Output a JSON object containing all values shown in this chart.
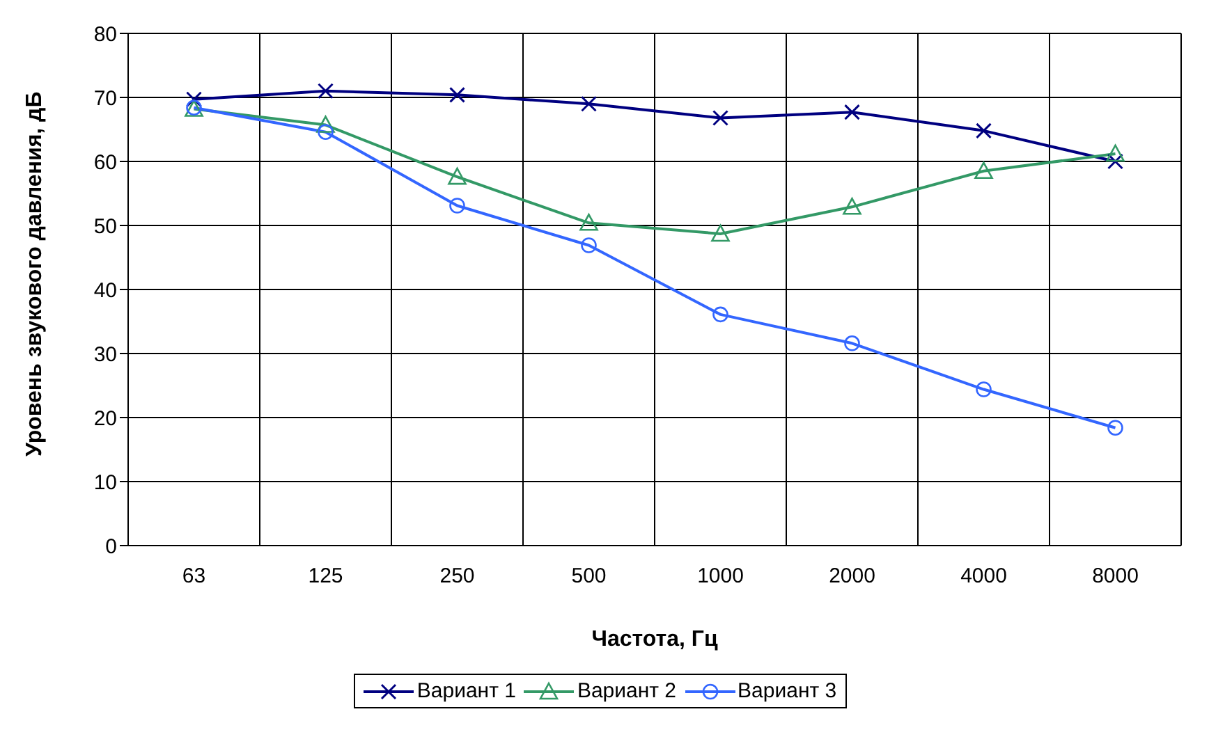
{
  "chart_data": {
    "type": "line",
    "xlabel": "Частота, Гц",
    "ylabel": "Уровень звукового давления, дБ",
    "categories": [
      "63",
      "125",
      "250",
      "500",
      "1000",
      "2000",
      "4000",
      "8000"
    ],
    "series": [
      {
        "name": "Вариант 1",
        "color": "#000080",
        "marker": "cross",
        "values": [
          69.7,
          71,
          70.4,
          69,
          66.8,
          67.7,
          64.8,
          60
        ]
      },
      {
        "name": "Вариант 2",
        "color": "#339966",
        "marker": "triangle",
        "values": [
          68.2,
          65.7,
          57.6,
          50.4,
          48.7,
          52.9,
          58.5,
          61.2
        ]
      },
      {
        "name": "Вариант 3",
        "color": "#3366ff",
        "marker": "circle",
        "values": [
          68.4,
          64.6,
          53.1,
          46.9,
          36.1,
          31.6,
          24.4,
          18.4
        ]
      }
    ],
    "ylim": [
      0,
      80
    ],
    "yticks": [
      0,
      10,
      20,
      30,
      40,
      50,
      60,
      70,
      80
    ],
    "grid": true,
    "legend": "bottom"
  }
}
